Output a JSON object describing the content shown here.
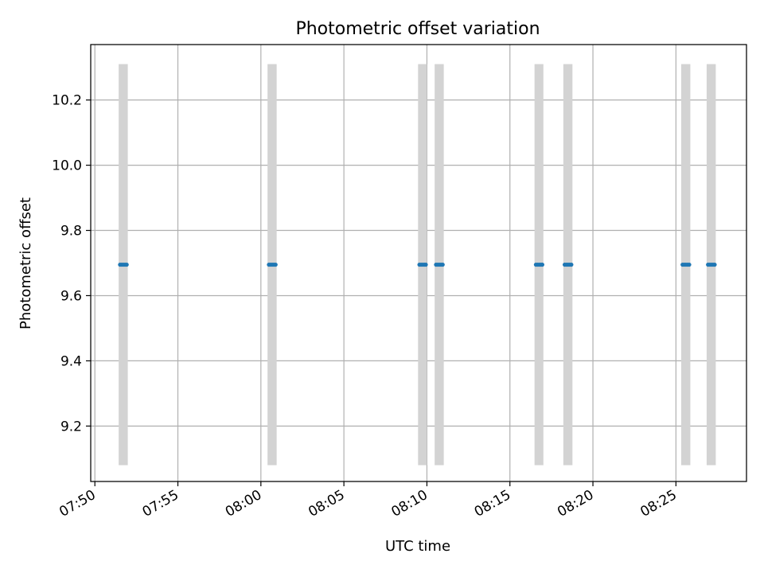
{
  "chart_data": {
    "type": "scatter",
    "title": "Photometric offset variation",
    "xlabel": "UTC time",
    "ylabel": "Photometric offset",
    "grid": true,
    "legend": "none",
    "xlim": [
      "07:49:45",
      "08:29:15"
    ],
    "ylim": [
      9.03,
      10.37
    ],
    "x_ticks": [
      "07:50",
      "07:55",
      "08:00",
      "08:05",
      "08:10",
      "08:15",
      "08:20",
      "08:25"
    ],
    "y_ticks": [
      9.2,
      9.4,
      9.6,
      9.8,
      10.0,
      10.2
    ],
    "colors": {
      "points": "#1f77b4",
      "exposure_bands": "#d3d3d3",
      "grid": "#b0b0b0"
    },
    "exposure_bands": [
      {
        "start": "07:51:26",
        "end": "07:51:59",
        "y_range": [
          9.08,
          10.31
        ]
      },
      {
        "start": "08:00:24",
        "end": "08:00:57",
        "y_range": [
          9.08,
          10.31
        ]
      },
      {
        "start": "08:09:28",
        "end": "08:10:00",
        "y_range": [
          9.08,
          10.31
        ]
      },
      {
        "start": "08:10:28",
        "end": "08:11:01",
        "y_range": [
          9.08,
          10.31
        ]
      },
      {
        "start": "08:16:29",
        "end": "08:17:01",
        "y_range": [
          9.08,
          10.31
        ]
      },
      {
        "start": "08:18:13",
        "end": "08:18:46",
        "y_range": [
          9.08,
          10.31
        ]
      },
      {
        "start": "08:25:19",
        "end": "08:25:52",
        "y_range": [
          9.08,
          10.31
        ]
      },
      {
        "start": "08:26:51",
        "end": "08:27:24",
        "y_range": [
          9.08,
          10.31
        ]
      }
    ],
    "series": [
      {
        "marker": "dot",
        "x": [
          "07:51:31",
          "07:51:37",
          "07:51:43",
          "07:51:49",
          "07:51:55",
          "08:00:29",
          "08:00:35",
          "08:00:41",
          "08:00:47",
          "08:00:53",
          "08:09:33",
          "08:09:39",
          "08:09:45",
          "08:09:51",
          "08:09:56",
          "08:10:33",
          "08:10:39",
          "08:10:45",
          "08:10:51",
          "08:10:57",
          "08:16:34",
          "08:16:40",
          "08:16:46",
          "08:16:52",
          "08:16:57",
          "08:18:18",
          "08:18:24",
          "08:18:30",
          "08:18:36",
          "08:18:42",
          "08:25:24",
          "08:25:30",
          "08:25:36",
          "08:25:42",
          "08:25:48",
          "08:26:56",
          "08:27:02",
          "08:27:08",
          "08:27:14",
          "08:27:20"
        ],
        "y": [
          9.695,
          9.695,
          9.695,
          9.695,
          9.695,
          9.695,
          9.695,
          9.695,
          9.695,
          9.695,
          9.695,
          9.695,
          9.695,
          9.695,
          9.695,
          9.695,
          9.695,
          9.695,
          9.695,
          9.695,
          9.695,
          9.695,
          9.695,
          9.695,
          9.695,
          9.695,
          9.695,
          9.695,
          9.695,
          9.695,
          9.695,
          9.695,
          9.695,
          9.695,
          9.695,
          9.695,
          9.695,
          9.695,
          9.695,
          9.695
        ]
      }
    ]
  }
}
